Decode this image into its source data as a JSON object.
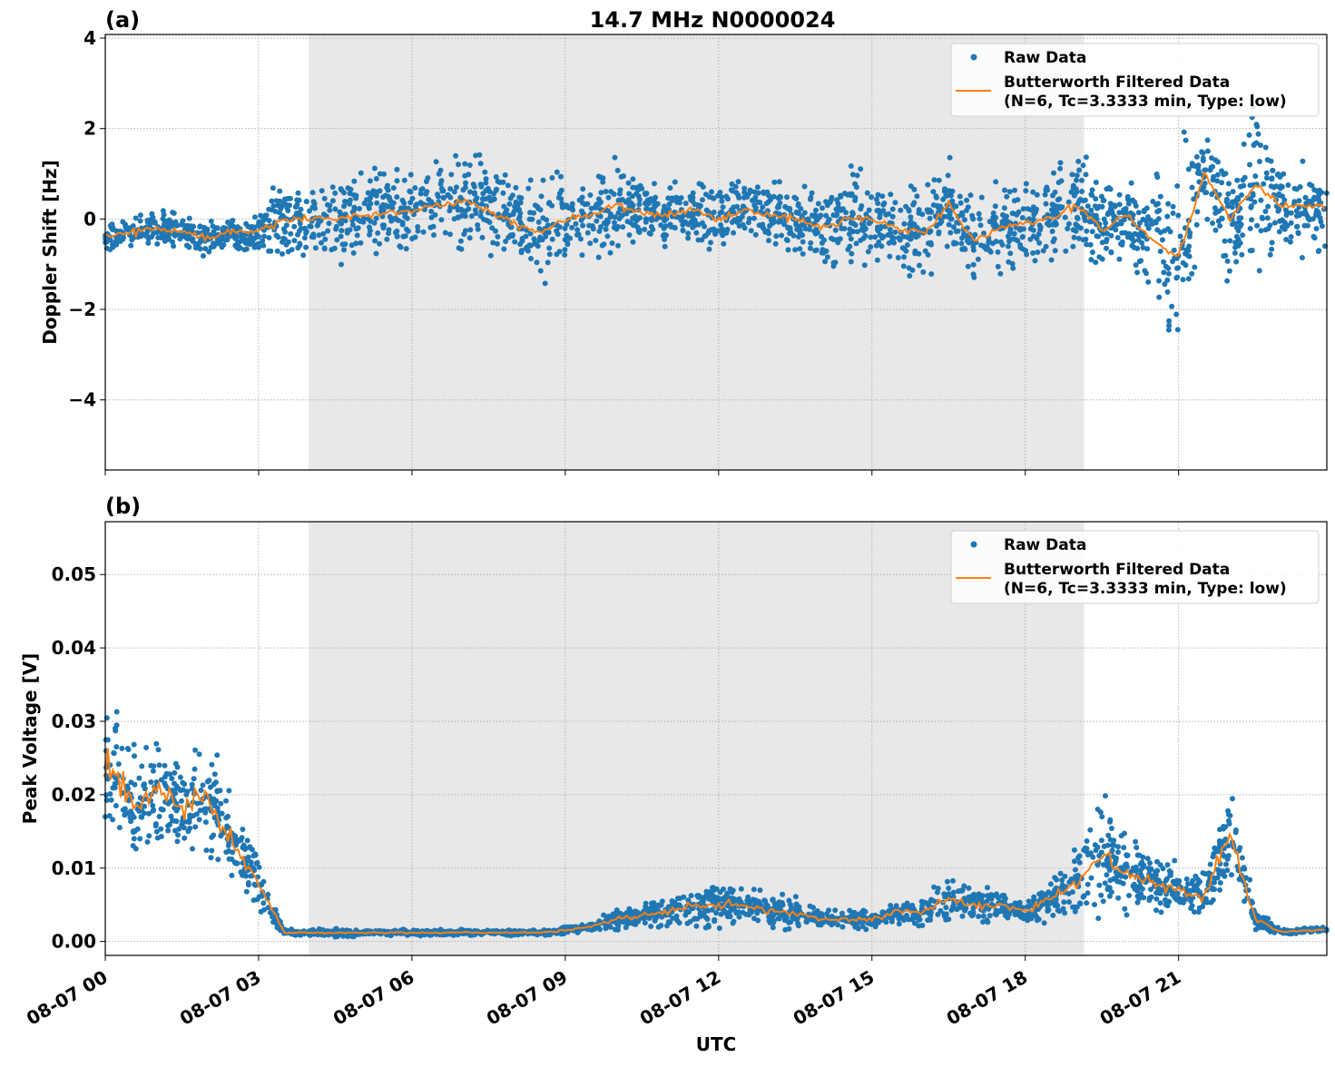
{
  "chart_data": [
    {
      "type": "scatter",
      "title": "14.7 MHz N0000024",
      "panel_label": "(a)",
      "xlabel": "",
      "ylabel": "Doppler Shift [Hz]",
      "xlim_hours": [
        0,
        23.9
      ],
      "ylim": [
        -5.55,
        4.08
      ],
      "yticks": [
        4,
        2,
        0,
        -2,
        -4
      ],
      "ytick_labels": [
        "4",
        "2",
        "0",
        "−2",
        "−4"
      ],
      "grid": true,
      "shaded_region_hours": [
        3.98,
        19.15
      ],
      "shaded_color": "#e8e8e8",
      "legend": {
        "placement": "top-right",
        "raw": "Raw Data",
        "filtered_line1": "Butterworth Filtered Data",
        "filtered_line2": "(N=6, Tc=3.3333 min, Type: low)"
      },
      "series_colors": {
        "raw": "#1f77b4",
        "filtered": "#ff7f0e"
      },
      "sample_hours_step": 0.5,
      "filtered": [
        -0.4,
        -0.3,
        -0.2,
        -0.3,
        -0.4,
        -0.3,
        -0.3,
        0.0,
        0.0,
        0.0,
        0.1,
        0.1,
        0.2,
        0.3,
        0.4,
        0.2,
        -0.1,
        -0.3,
        0.0,
        0.1,
        0.3,
        0.1,
        0.1,
        0.2,
        0.0,
        0.2,
        0.1,
        0.0,
        -0.2,
        0.0,
        0.0,
        -0.2,
        -0.3,
        0.3,
        -0.5,
        -0.2,
        -0.1,
        0.0,
        0.3,
        -0.2,
        0.1,
        -0.5,
        -0.8,
        1.0,
        0.0,
        0.8,
        0.3,
        0.3
      ],
      "raw_spread": [
        0.4,
        0.4,
        0.5,
        0.5,
        0.5,
        0.5,
        0.6,
        1.2,
        1.2,
        1.2,
        1.2,
        1.3,
        1.3,
        1.4,
        1.4,
        1.3,
        1.4,
        1.5,
        1.2,
        1.2,
        1.3,
        1.0,
        0.9,
        0.9,
        0.9,
        0.9,
        0.9,
        1.0,
        1.2,
        1.3,
        1.2,
        1.2,
        1.3,
        1.4,
        1.4,
        1.3,
        1.3,
        1.4,
        1.8,
        1.2,
        1.0,
        2.5,
        3.0,
        1.5,
        1.8,
        2.2,
        1.2,
        1.3
      ]
    },
    {
      "type": "scatter",
      "panel_label": "(b)",
      "xlabel": "UTC",
      "ylabel": "Peak Voltage [V]",
      "xlim_hours": [
        0,
        23.9
      ],
      "ylim": [
        -0.0019,
        0.0572
      ],
      "yticks": [
        0.05,
        0.04,
        0.03,
        0.02,
        0.01,
        0.0
      ],
      "ytick_labels": [
        "0.05",
        "0.04",
        "0.03",
        "0.02",
        "0.01",
        "0.00"
      ],
      "xticks_hours": [
        0,
        3,
        6,
        9,
        12,
        15,
        18,
        21
      ],
      "xtick_labels": [
        "08-07 00",
        "08-07 03",
        "08-07 06",
        "08-07 09",
        "08-07 12",
        "08-07 15",
        "08-07 18",
        "08-07 21"
      ],
      "grid": true,
      "shaded_region_hours": [
        3.98,
        19.15
      ],
      "legend": {
        "placement": "top-right",
        "raw": "Raw Data",
        "filtered_line1": "Butterworth Filtered Data",
        "filtered_line2": "(N=6, Tc=3.3333 min, Type: low)"
      },
      "sample_hours_step": 0.5,
      "filtered": [
        0.025,
        0.019,
        0.02,
        0.018,
        0.02,
        0.013,
        0.008,
        0.0012,
        0.0012,
        0.0012,
        0.0012,
        0.0012,
        0.0012,
        0.0012,
        0.0012,
        0.0012,
        0.0012,
        0.0012,
        0.0015,
        0.002,
        0.003,
        0.0035,
        0.004,
        0.005,
        0.005,
        0.005,
        0.004,
        0.004,
        0.003,
        0.003,
        0.003,
        0.004,
        0.004,
        0.006,
        0.005,
        0.005,
        0.004,
        0.006,
        0.008,
        0.012,
        0.009,
        0.008,
        0.007,
        0.006,
        0.015,
        0.003,
        0.0013,
        0.0015
      ],
      "raw_spread": [
        0.012,
        0.01,
        0.01,
        0.009,
        0.01,
        0.007,
        0.005,
        0.0006,
        0.0006,
        0.0008,
        0.0005,
        0.0005,
        0.0005,
        0.0005,
        0.0005,
        0.0005,
        0.0005,
        0.0005,
        0.0008,
        0.001,
        0.002,
        0.002,
        0.003,
        0.004,
        0.004,
        0.003,
        0.003,
        0.003,
        0.002,
        0.0015,
        0.0015,
        0.002,
        0.003,
        0.004,
        0.003,
        0.003,
        0.002,
        0.004,
        0.006,
        0.01,
        0.007,
        0.005,
        0.004,
        0.004,
        0.01,
        0.002,
        0.0005,
        0.0005
      ]
    }
  ]
}
